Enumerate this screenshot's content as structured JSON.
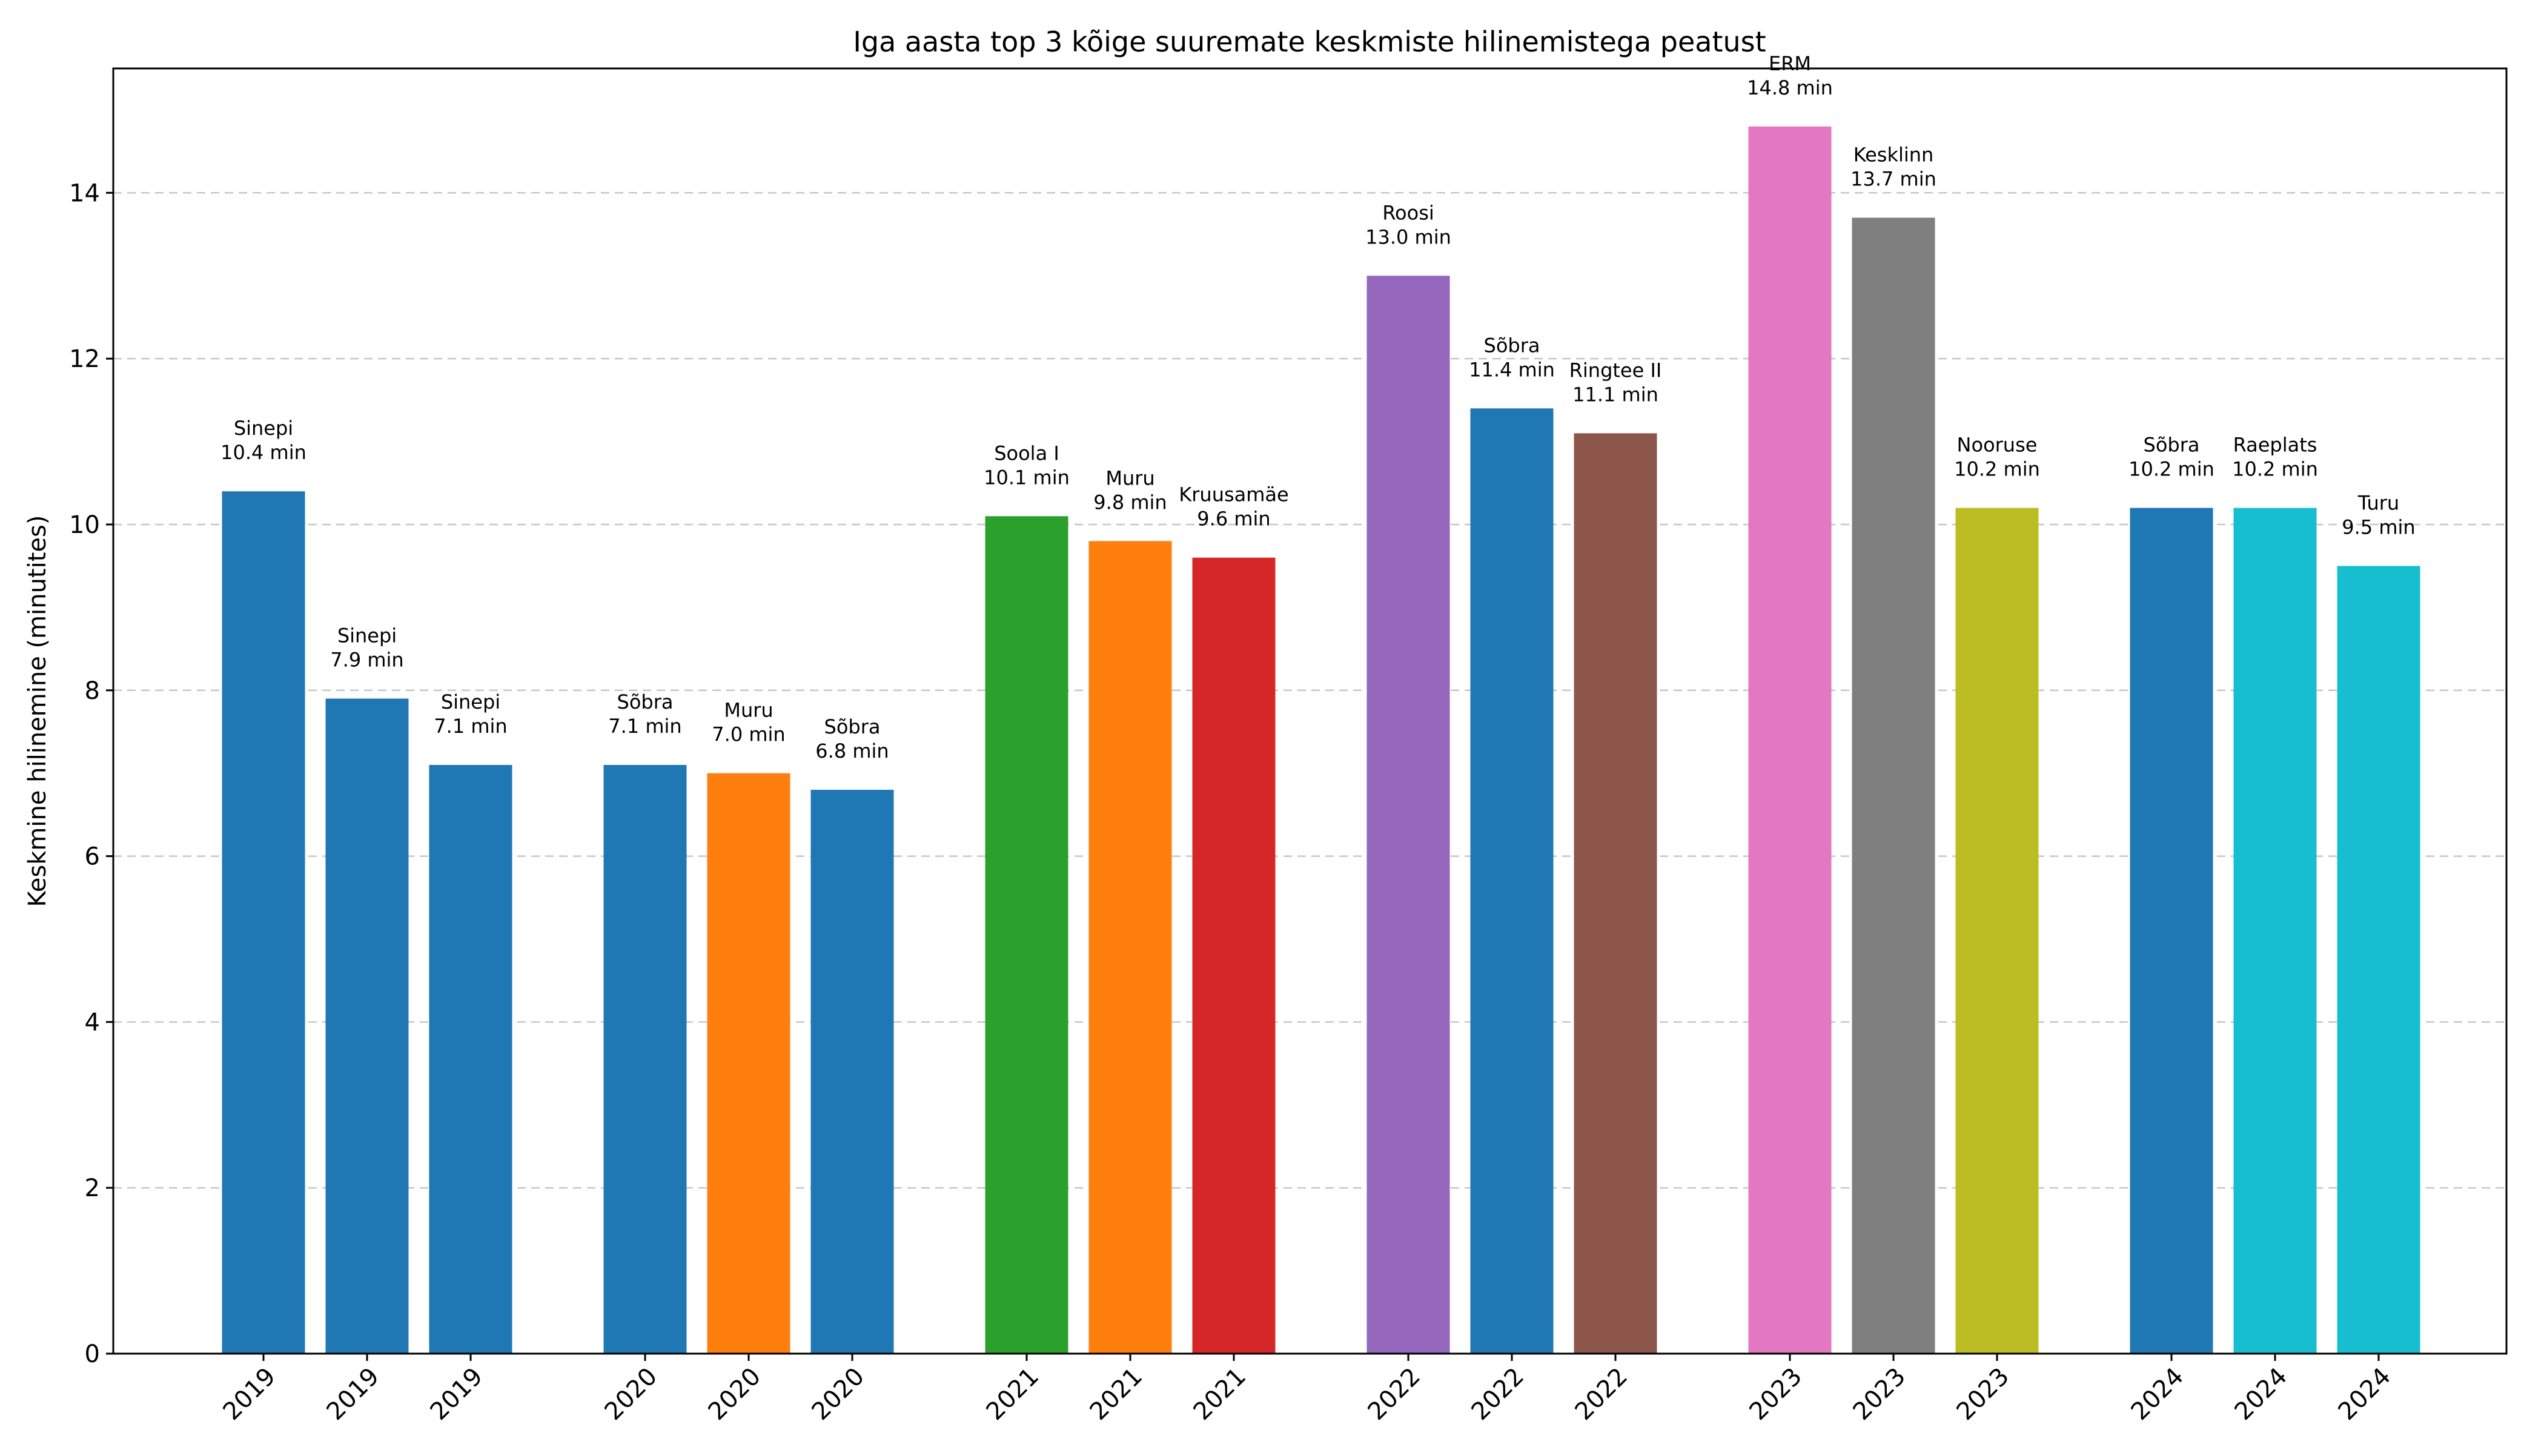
{
  "chart_data": {
    "type": "bar",
    "title": "Iga aasta top 3 kõige suuremate keskmiste hilinemistega peatust",
    "xlabel": "",
    "ylabel": "Keskmine hilinemine (minutites)",
    "ylim": [
      0,
      15.5
    ],
    "yticks": [
      0,
      2,
      4,
      6,
      8,
      10,
      12,
      14
    ],
    "grid": "y, dashed",
    "legend": "none",
    "unit_suffix": "min",
    "bars": [
      {
        "year": "2019",
        "stop": "Sinepi",
        "value": 10.4,
        "color": "#1f77b4"
      },
      {
        "year": "2019",
        "stop": "Sinepi",
        "value": 7.9,
        "color": "#1f77b4"
      },
      {
        "year": "2019",
        "stop": "Sinepi",
        "value": 7.1,
        "color": "#1f77b4"
      },
      {
        "year": "2020",
        "stop": "Sõbra",
        "value": 7.1,
        "color": "#1f77b4"
      },
      {
        "year": "2020",
        "stop": "Muru",
        "value": 7.0,
        "color": "#ff7f0e"
      },
      {
        "year": "2020",
        "stop": "Sõbra",
        "value": 6.8,
        "color": "#1f77b4"
      },
      {
        "year": "2021",
        "stop": "Soola I",
        "value": 10.1,
        "color": "#2ca02c"
      },
      {
        "year": "2021",
        "stop": "Muru",
        "value": 9.8,
        "color": "#ff7f0e"
      },
      {
        "year": "2021",
        "stop": "Kruusamäe",
        "value": 9.6,
        "color": "#d62728"
      },
      {
        "year": "2022",
        "stop": "Roosi",
        "value": 13.0,
        "color": "#9467bd"
      },
      {
        "year": "2022",
        "stop": "Sõbra",
        "value": 11.4,
        "color": "#1f77b4"
      },
      {
        "year": "2022",
        "stop": "Ringtee II",
        "value": 11.1,
        "color": "#8c564b"
      },
      {
        "year": "2023",
        "stop": "ERM",
        "value": 14.8,
        "color": "#e377c2"
      },
      {
        "year": "2023",
        "stop": "Kesklinn",
        "value": 13.7,
        "color": "#7f7f7f"
      },
      {
        "year": "2023",
        "stop": "Nooruse",
        "value": 10.2,
        "color": "#bcbd22"
      },
      {
        "year": "2024",
        "stop": "Sõbra",
        "value": 10.2,
        "color": "#1f77b4"
      },
      {
        "year": "2024",
        "stop": "Raeplats",
        "value": 10.2,
        "color": "#17becf"
      },
      {
        "year": "2024",
        "stop": "Turu",
        "value": 9.5,
        "color": "#17becf"
      }
    ]
  }
}
